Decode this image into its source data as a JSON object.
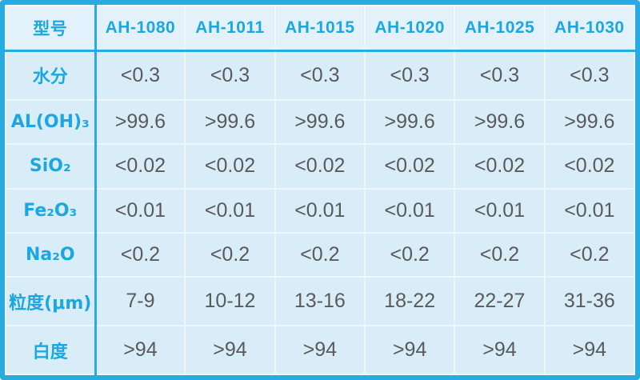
{
  "colors": {
    "accent": "#29ABE2",
    "header_text": "#1CA7E2",
    "value_text": "#595A5C",
    "cell_bg": "#D9EDF8",
    "header_bg": "#E3F2FA",
    "grid_line": "#EDF7FC"
  },
  "chart_data": {
    "type": "table",
    "title": "",
    "columns": [
      "型号",
      "AH-1080",
      "AH-1011",
      "AH-1015",
      "AH-1020",
      "AH-1025",
      "AH-1030"
    ],
    "rows": [
      {
        "label": "水分",
        "values": [
          "<0.3",
          "<0.3",
          "<0.3",
          "<0.3",
          "<0.3",
          "<0.3"
        ]
      },
      {
        "label": "AL(OH)₃",
        "values": [
          ">99.6",
          ">99.6",
          ">99.6",
          ">99.6",
          ">99.6",
          ">99.6"
        ]
      },
      {
        "label": "SiO₂",
        "values": [
          "<0.02",
          "<0.02",
          "<0.02",
          "<0.02",
          "<0.02",
          "<0.02"
        ]
      },
      {
        "label": "Fe₂O₃",
        "values": [
          "<0.01",
          "<0.01",
          "<0.01",
          "<0.01",
          "<0.01",
          "<0.01"
        ]
      },
      {
        "label": "Na₂O",
        "values": [
          "<0.2",
          "<0.2",
          "<0.2",
          "<0.2",
          "<0.2",
          "<0.2"
        ]
      },
      {
        "label": "粒度(μm)",
        "values": [
          "7-9",
          "10-12",
          "13-16",
          "18-22",
          "22-27",
          "31-36"
        ]
      },
      {
        "label": "白度",
        "values": [
          ">94",
          ">94",
          ">94",
          ">94",
          ">94",
          ">94"
        ]
      }
    ]
  }
}
